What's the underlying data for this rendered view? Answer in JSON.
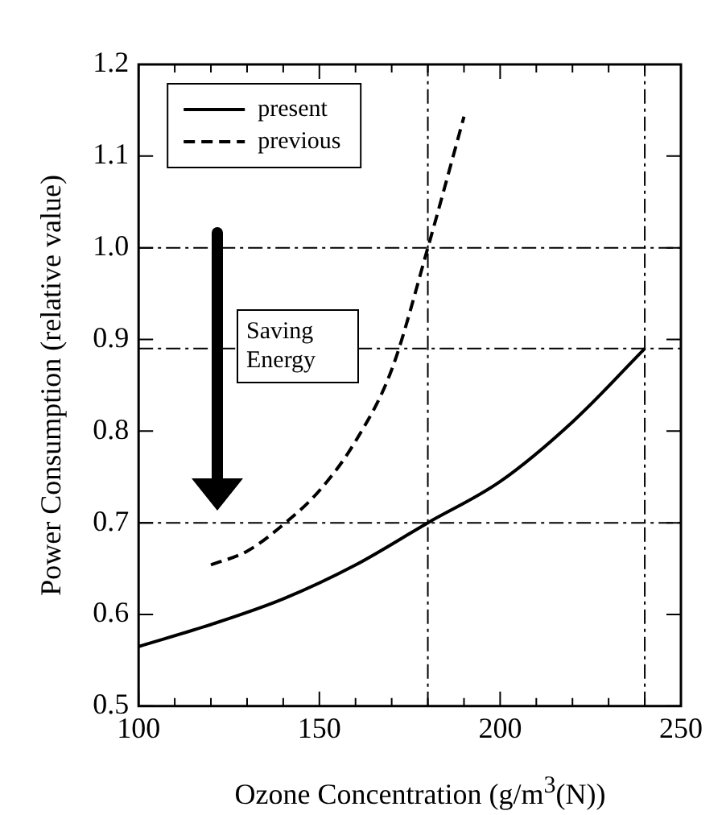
{
  "chart_data": {
    "type": "line",
    "xlabel": "Ozone Concentration (g/m$^{3}$(N))",
    "ylabel": "Power Consumption (relative value)",
    "series": [
      {
        "name": "present",
        "color": "#000000",
        "line_style": "solid",
        "x": [
          100,
          120,
          140,
          160,
          180,
          200,
          220,
          240
        ],
        "values": [
          0.565,
          0.589,
          0.617,
          0.654,
          0.7,
          0.745,
          0.81,
          0.89
        ]
      },
      {
        "name": "previous",
        "color": "#000000",
        "line_style": "dashed",
        "x": [
          120,
          130,
          140,
          150,
          160,
          170,
          180,
          190
        ],
        "values": [
          0.654,
          0.669,
          0.698,
          0.735,
          0.789,
          0.867,
          1.0,
          1.143
        ]
      }
    ],
    "xlim": [
      100,
      250
    ],
    "xticks": [
      100,
      {
        "value": 110,
        "label": null
      },
      {
        "value": 120,
        "label": null
      },
      {
        "value": 130,
        "label": null
      },
      {
        "value": 140,
        "label": null
      },
      150,
      {
        "value": 160,
        "label": null
      },
      {
        "value": 170,
        "label": null
      },
      {
        "value": 180,
        "label": null
      },
      {
        "value": 190,
        "label": null
      },
      200,
      {
        "value": 210,
        "label": null
      },
      {
        "value": 220,
        "label": null
      },
      {
        "value": 230,
        "label": null
      },
      {
        "value": 240,
        "label": null
      },
      250
    ],
    "ylim": [
      0.5,
      1.2
    ],
    "yticks": [
      0.5,
      0.6,
      0.7,
      0.8,
      0.9,
      {
        "value": 1,
        "label": "1.0"
      },
      1.1,
      1.2
    ],
    "ref_lines": [
      {
        "axis": "y",
        "value": 1.0,
        "line_style": "dashed"
      },
      {
        "axis": "y",
        "value": 0.7,
        "line_style": "dashed"
      },
      {
        "axis": "x",
        "value": 180,
        "line_style": "dashed"
      },
      {
        "axis": "y",
        "value": 0.89,
        "line_style": "dashed"
      },
      {
        "axis": "x",
        "value": 240,
        "line_style": "dashed"
      }
    ],
    "annotations": [
      "Saving Energy"
    ],
    "legend": "top left",
    "grid": false,
    "marker": "none"
  }
}
